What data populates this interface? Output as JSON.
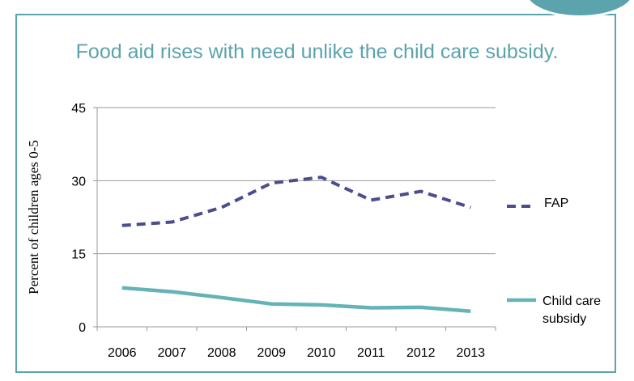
{
  "colors": {
    "frame": "#5ba3ad",
    "fap": "#4b4d8f",
    "child_care": "#65b3b6",
    "axis": "#9a9a9a",
    "title": "#5ba3ad"
  },
  "chart_data": {
    "type": "line",
    "title": "Food aid rises with need unlike the child care subsidy.",
    "xlabel": "",
    "ylabel": "Percent of children ages 0-5",
    "categories": [
      "2006",
      "2007",
      "2008",
      "2009",
      "2010",
      "2011",
      "2012",
      "2013"
    ],
    "ylim": [
      0,
      45
    ],
    "yticks": [
      "0",
      "15",
      "30",
      "45"
    ],
    "grid": true,
    "legend_position": "right",
    "series": [
      {
        "name": "FAP",
        "style": "dashed",
        "values": [
          20.8,
          21.5,
          24.5,
          29.5,
          30.7,
          26.0,
          27.8,
          24.5
        ]
      },
      {
        "name": "Child care subsidy",
        "style": "solid",
        "values": [
          8.0,
          7.2,
          6.0,
          4.7,
          4.5,
          3.9,
          4.0,
          3.2
        ]
      }
    ]
  }
}
